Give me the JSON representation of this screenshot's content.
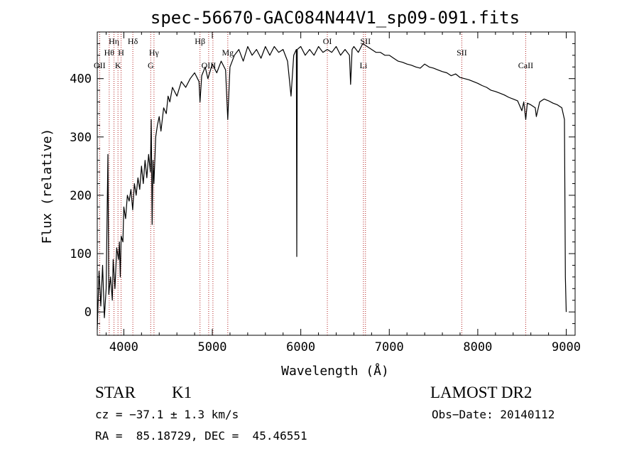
{
  "chart_data": {
    "type": "line",
    "title": "spec-56670-GAC084N44V1_sp09-091.fits",
    "xlabel": "Wavelength (Å)",
    "ylabel": "Flux (relative)",
    "xlim": [
      3700,
      9100
    ],
    "ylim": [
      -40,
      480
    ],
    "x_ticks": [
      4000,
      5000,
      6000,
      7000,
      8000,
      9000
    ],
    "y_ticks": [
      0,
      100,
      200,
      300,
      400
    ],
    "series": [
      {
        "color": "#000000",
        "points": [
          [
            3700,
            -30
          ],
          [
            3720,
            70
          ],
          [
            3740,
            10
          ],
          [
            3760,
            80
          ],
          [
            3780,
            -10
          ],
          [
            3800,
            40
          ],
          [
            3820,
            270
          ],
          [
            3830,
            30
          ],
          [
            3850,
            60
          ],
          [
            3870,
            20
          ],
          [
            3880,
            90
          ],
          [
            3900,
            40
          ],
          [
            3920,
            110
          ],
          [
            3940,
            90
          ],
          [
            3950,
            120
          ],
          [
            3960,
            60
          ],
          [
            3970,
            130
          ],
          [
            3990,
            120
          ],
          [
            4000,
            180
          ],
          [
            4020,
            160
          ],
          [
            4040,
            200
          ],
          [
            4060,
            190
          ],
          [
            4080,
            210
          ],
          [
            4100,
            175
          ],
          [
            4120,
            220
          ],
          [
            4140,
            200
          ],
          [
            4160,
            230
          ],
          [
            4180,
            210
          ],
          [
            4200,
            250
          ],
          [
            4220,
            220
          ],
          [
            4240,
            260
          ],
          [
            4260,
            230
          ],
          [
            4280,
            270
          ],
          [
            4300,
            240
          ],
          [
            4310,
            330
          ],
          [
            4320,
            150
          ],
          [
            4330,
            260
          ],
          [
            4340,
            220
          ],
          [
            4360,
            300
          ],
          [
            4380,
            320
          ],
          [
            4400,
            335
          ],
          [
            4420,
            310
          ],
          [
            4450,
            350
          ],
          [
            4480,
            340
          ],
          [
            4500,
            370
          ],
          [
            4520,
            360
          ],
          [
            4550,
            385
          ],
          [
            4600,
            370
          ],
          [
            4650,
            395
          ],
          [
            4700,
            385
          ],
          [
            4750,
            400
          ],
          [
            4800,
            410
          ],
          [
            4850,
            395
          ],
          [
            4861,
            360
          ],
          [
            4880,
            405
          ],
          [
            4920,
            420
          ],
          [
            4950,
            400
          ],
          [
            5000,
            425
          ],
          [
            5050,
            410
          ],
          [
            5100,
            430
          ],
          [
            5150,
            415
          ],
          [
            5175,
            330
          ],
          [
            5200,
            420
          ],
          [
            5250,
            440
          ],
          [
            5300,
            450
          ],
          [
            5350,
            430
          ],
          [
            5400,
            455
          ],
          [
            5450,
            440
          ],
          [
            5500,
            450
          ],
          [
            5550,
            435
          ],
          [
            5600,
            455
          ],
          [
            5650,
            440
          ],
          [
            5700,
            455
          ],
          [
            5750,
            445
          ],
          [
            5800,
            450
          ],
          [
            5850,
            430
          ],
          [
            5890,
            370
          ],
          [
            5920,
            440
          ],
          [
            5950,
            450
          ],
          [
            5955,
            95
          ],
          [
            5960,
            450
          ],
          [
            6000,
            455
          ],
          [
            6050,
            440
          ],
          [
            6100,
            450
          ],
          [
            6150,
            440
          ],
          [
            6200,
            455
          ],
          [
            6250,
            445
          ],
          [
            6300,
            450
          ],
          [
            6350,
            445
          ],
          [
            6400,
            455
          ],
          [
            6450,
            440
          ],
          [
            6500,
            450
          ],
          [
            6550,
            440
          ],
          [
            6563,
            390
          ],
          [
            6580,
            450
          ],
          [
            6600,
            455
          ],
          [
            6650,
            445
          ],
          [
            6700,
            460
          ],
          [
            6750,
            455
          ],
          [
            6800,
            450
          ],
          [
            6850,
            445
          ],
          [
            6900,
            445
          ],
          [
            6950,
            440
          ],
          [
            7000,
            440
          ],
          [
            7050,
            435
          ],
          [
            7100,
            430
          ],
          [
            7150,
            428
          ],
          [
            7200,
            425
          ],
          [
            7250,
            423
          ],
          [
            7300,
            420
          ],
          [
            7350,
            418
          ],
          [
            7400,
            425
          ],
          [
            7450,
            420
          ],
          [
            7500,
            418
          ],
          [
            7550,
            415
          ],
          [
            7600,
            412
          ],
          [
            7650,
            410
          ],
          [
            7700,
            405
          ],
          [
            7750,
            408
          ],
          [
            7800,
            402
          ],
          [
            7850,
            400
          ],
          [
            7900,
            398
          ],
          [
            7950,
            395
          ],
          [
            8000,
            392
          ],
          [
            8050,
            388
          ],
          [
            8100,
            385
          ],
          [
            8150,
            380
          ],
          [
            8200,
            378
          ],
          [
            8250,
            375
          ],
          [
            8300,
            372
          ],
          [
            8350,
            368
          ],
          [
            8400,
            365
          ],
          [
            8450,
            362
          ],
          [
            8498,
            345
          ],
          [
            8520,
            360
          ],
          [
            8542,
            330
          ],
          [
            8560,
            358
          ],
          [
            8600,
            355
          ],
          [
            8650,
            350
          ],
          [
            8662,
            335
          ],
          [
            8700,
            360
          ],
          [
            8750,
            365
          ],
          [
            8800,
            362
          ],
          [
            8850,
            358
          ],
          [
            8900,
            355
          ],
          [
            8950,
            350
          ],
          [
            8980,
            330
          ],
          [
            8990,
            60
          ],
          [
            9000,
            0
          ]
        ]
      }
    ],
    "lines": [
      {
        "x": 3727,
        "label": "OII",
        "row": 3
      },
      {
        "x": 3835,
        "label": "Hθ",
        "row": 2
      },
      {
        "x": 3889,
        "label": "Hη",
        "row": 1
      },
      {
        "x": 3934,
        "label": "K",
        "row": 3
      },
      {
        "x": 3969,
        "label": "H",
        "row": 2
      },
      {
        "x": 4102,
        "label": "Hδ",
        "row": 1
      },
      {
        "x": 4304,
        "label": "G",
        "row": 3
      },
      {
        "x": 4341,
        "label": "Hγ",
        "row": 2
      },
      {
        "x": 4861,
        "label": "Hβ",
        "row": 1
      },
      {
        "x": 4959,
        "label": "OIII",
        "row": 3
      },
      {
        "x": 5007,
        "label": "",
        "row": 3
      },
      {
        "x": 5175,
        "label": "Mg",
        "row": 2
      },
      {
        "x": 6300,
        "label": "OI",
        "row": 1
      },
      {
        "x": 6708,
        "label": "Li",
        "row": 3
      },
      {
        "x": 6731,
        "label": "SII",
        "row": 1
      },
      {
        "x": 7820,
        "label": "SII",
        "row": 2
      },
      {
        "x": 8542,
        "label": "CaII",
        "row": 3
      }
    ]
  },
  "info": {
    "object_class": "STAR",
    "subclass": "K1",
    "survey": "LAMOST DR2",
    "cz": "cz = −37.1 ± 1.3 km/s",
    "obs_date": "Obs−Date: 20140112",
    "coords": "RA =  85.18729, DEC =  45.46551"
  }
}
